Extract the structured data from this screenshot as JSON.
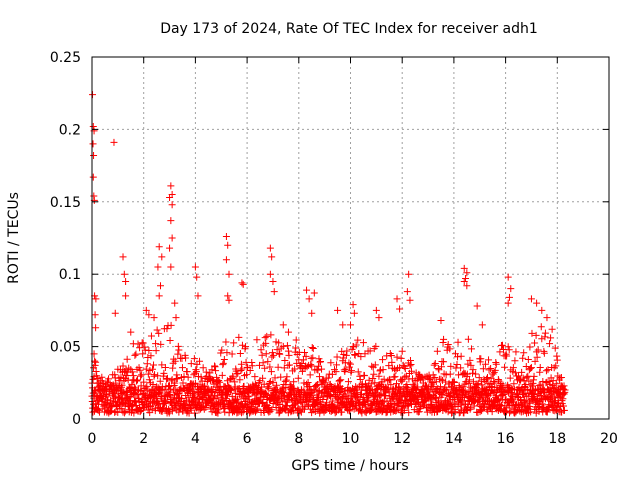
{
  "chart_data": {
    "type": "scatter",
    "title": "Day 173 of 2024, Rate Of TEC Index for receiver adh1",
    "xlabel": "GPS time / hours",
    "ylabel": "ROTI / TECUs",
    "xlim": [
      0,
      20
    ],
    "ylim": [
      0,
      0.25
    ],
    "x_ticks": [
      0,
      2,
      4,
      6,
      8,
      10,
      12,
      14,
      16,
      18,
      20
    ],
    "x_tick_labels": [
      "0",
      "2",
      "4",
      "6",
      "8",
      "10",
      "12",
      "14",
      "16",
      "18",
      "20"
    ],
    "y_ticks": [
      0,
      0.05,
      0.1,
      0.15,
      0.2,
      0.25
    ],
    "y_tick_labels": [
      "0",
      "0.05",
      "0.1",
      "0.15",
      "0.2",
      "0.25"
    ],
    "grid": true,
    "marker": "+",
    "color": "#ff0000",
    "series": [
      {
        "name": "adh1",
        "points": [
          [
            0.02,
            0.224
          ],
          [
            0.05,
            0.202
          ],
          [
            0.08,
            0.199
          ],
          [
            0.04,
            0.19
          ],
          [
            0.06,
            0.182
          ],
          [
            0.05,
            0.167
          ],
          [
            0.07,
            0.154
          ],
          [
            0.09,
            0.151
          ],
          [
            0.1,
            0.085
          ],
          [
            0.15,
            0.083
          ],
          [
            0.12,
            0.072
          ],
          [
            0.14,
            0.063
          ],
          [
            0.08,
            0.045
          ],
          [
            0.1,
            0.04
          ],
          [
            0.85,
            0.191
          ],
          [
            0.9,
            0.073
          ],
          [
            1.2,
            0.112
          ],
          [
            1.25,
            0.1
          ],
          [
            1.3,
            0.095
          ],
          [
            1.3,
            0.085
          ],
          [
            1.5,
            0.06
          ],
          [
            1.6,
            0.052
          ],
          [
            2.1,
            0.075
          ],
          [
            2.2,
            0.072
          ],
          [
            2.4,
            0.07
          ],
          [
            2.6,
            0.119
          ],
          [
            2.7,
            0.112
          ],
          [
            2.55,
            0.105
          ],
          [
            2.65,
            0.092
          ],
          [
            2.6,
            0.085
          ],
          [
            3.05,
            0.161
          ],
          [
            3.1,
            0.155
          ],
          [
            3.0,
            0.153
          ],
          [
            3.1,
            0.148
          ],
          [
            3.05,
            0.137
          ],
          [
            3.1,
            0.125
          ],
          [
            3.0,
            0.118
          ],
          [
            3.05,
            0.105
          ],
          [
            3.2,
            0.08
          ],
          [
            3.25,
            0.07
          ],
          [
            4.0,
            0.105
          ],
          [
            4.05,
            0.098
          ],
          [
            4.1,
            0.085
          ],
          [
            5.2,
            0.126
          ],
          [
            5.25,
            0.12
          ],
          [
            5.2,
            0.11
          ],
          [
            5.3,
            0.1
          ],
          [
            5.25,
            0.085
          ],
          [
            5.3,
            0.082
          ],
          [
            5.8,
            0.094
          ],
          [
            5.85,
            0.093
          ],
          [
            6.9,
            0.118
          ],
          [
            6.95,
            0.112
          ],
          [
            6.9,
            0.1
          ],
          [
            7.0,
            0.095
          ],
          [
            7.05,
            0.088
          ],
          [
            7.4,
            0.065
          ],
          [
            7.6,
            0.06
          ],
          [
            8.3,
            0.089
          ],
          [
            8.4,
            0.083
          ],
          [
            8.6,
            0.087
          ],
          [
            8.5,
            0.073
          ],
          [
            9.5,
            0.075
          ],
          [
            9.7,
            0.065
          ],
          [
            10.1,
            0.079
          ],
          [
            10.15,
            0.073
          ],
          [
            10.0,
            0.065
          ],
          [
            11.0,
            0.075
          ],
          [
            11.1,
            0.07
          ],
          [
            11.8,
            0.083
          ],
          [
            11.9,
            0.076
          ],
          [
            12.25,
            0.1
          ],
          [
            12.2,
            0.088
          ],
          [
            12.3,
            0.082
          ],
          [
            13.5,
            0.068
          ],
          [
            13.6,
            0.055
          ],
          [
            14.4,
            0.104
          ],
          [
            14.5,
            0.101
          ],
          [
            14.45,
            0.097
          ],
          [
            14.5,
            0.092
          ],
          [
            14.4,
            0.095
          ],
          [
            14.9,
            0.078
          ],
          [
            15.1,
            0.065
          ],
          [
            16.1,
            0.098
          ],
          [
            16.2,
            0.09
          ],
          [
            16.15,
            0.084
          ],
          [
            16.1,
            0.08
          ],
          [
            17.0,
            0.083
          ],
          [
            17.2,
            0.08
          ],
          [
            17.4,
            0.075
          ],
          [
            17.6,
            0.07
          ],
          [
            17.8,
            0.062
          ]
        ],
        "dense_band": {
          "description": "continuous cloud of ROTI samples",
          "x_range": [
            0.0,
            18.3
          ],
          "baseline_max": 0.02,
          "envelope": [
            [
              0.0,
              0.045
            ],
            [
              0.5,
              0.025
            ],
            [
              1.0,
              0.035
            ],
            [
              1.5,
              0.05
            ],
            [
              2.0,
              0.055
            ],
            [
              2.5,
              0.065
            ],
            [
              3.0,
              0.07
            ],
            [
              3.5,
              0.045
            ],
            [
              4.0,
              0.045
            ],
            [
              4.5,
              0.035
            ],
            [
              5.0,
              0.055
            ],
            [
              5.5,
              0.06
            ],
            [
              6.0,
              0.055
            ],
            [
              6.5,
              0.055
            ],
            [
              7.0,
              0.06
            ],
            [
              7.5,
              0.05
            ],
            [
              8.0,
              0.06
            ],
            [
              8.5,
              0.055
            ],
            [
              9.0,
              0.035
            ],
            [
              9.5,
              0.045
            ],
            [
              10.0,
              0.055
            ],
            [
              10.5,
              0.055
            ],
            [
              11.0,
              0.05
            ],
            [
              11.5,
              0.045
            ],
            [
              12.0,
              0.05
            ],
            [
              12.5,
              0.035
            ],
            [
              13.0,
              0.03
            ],
            [
              13.5,
              0.055
            ],
            [
              14.0,
              0.05
            ],
            [
              14.5,
              0.06
            ],
            [
              15.0,
              0.05
            ],
            [
              15.5,
              0.04
            ],
            [
              16.0,
              0.06
            ],
            [
              16.5,
              0.045
            ],
            [
              17.0,
              0.065
            ],
            [
              17.5,
              0.065
            ],
            [
              18.0,
              0.05
            ],
            [
              18.3,
              0.02
            ]
          ]
        }
      }
    ]
  }
}
